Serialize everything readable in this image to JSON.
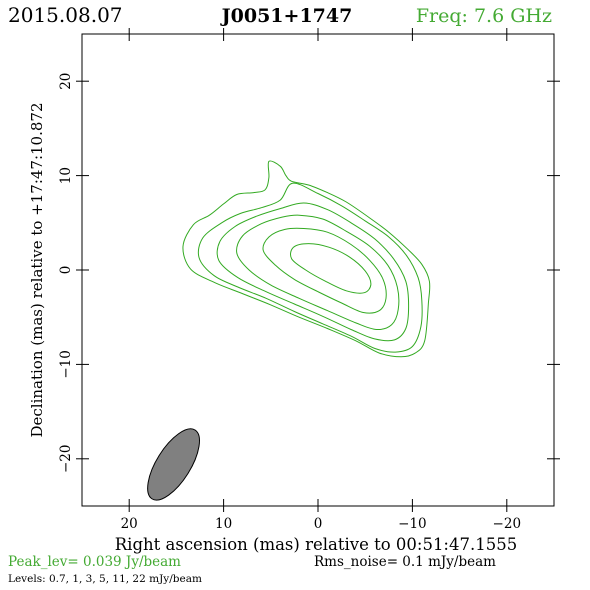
{
  "header": {
    "date": "2015.08.07",
    "source": "J0051+1747",
    "freq": "Freq: 7.6 GHz"
  },
  "footer": {
    "peak": "Peak_lev=  0.039 Jy/beam",
    "rms": "Rms_noise=   0.1 mJy/beam",
    "levels": "Levels: 0.7,    1,    3,    5,   11,   22 mJy/beam"
  },
  "colors": {
    "contour": "#33aa22",
    "header_green": "#44aa33",
    "beam_fill": "#808080",
    "axis": "#000000"
  },
  "chart_data": {
    "type": "contour",
    "xlabel": "Right ascension (mas) relative to 00:51:47.1555",
    "ylabel": "Declination (mas) relative to +17:47:10.872",
    "xlim": [
      25,
      -25
    ],
    "ylim": [
      -25,
      25
    ],
    "x_ticks": [
      20,
      10,
      0,
      -10,
      -20
    ],
    "x_tick_labels": [
      "20",
      "10",
      "0",
      "−10",
      "−20"
    ],
    "y_ticks": [
      20,
      10,
      0,
      -10,
      -20
    ],
    "y_tick_labels": [
      "20",
      "10",
      "0",
      "−10",
      "−20"
    ],
    "contour_levels_mJy": [
      0.7,
      1,
      3,
      5,
      11,
      22
    ],
    "peak_Jy_per_beam": 0.039,
    "rms_mJy_per_beam": 0.1,
    "beam": {
      "center": [
        15.3,
        -20.6
      ],
      "major_mas": 8.6,
      "minor_mas": 3.6,
      "pa_deg": -32
    },
    "contours": [
      [
        [
          5.2,
          11.5
        ],
        [
          4.0,
          11.0
        ],
        [
          3.4,
          10.0
        ],
        [
          2.8,
          9.4
        ],
        [
          1.0,
          9.0
        ],
        [
          -1.0,
          8.2
        ],
        [
          -3.0,
          7.2
        ],
        [
          -5.5,
          5.5
        ],
        [
          -7.5,
          4.0
        ],
        [
          -9.5,
          2.2
        ],
        [
          -11.0,
          0.6
        ],
        [
          -11.8,
          -1.2
        ],
        [
          -11.7,
          -3.5
        ],
        [
          -11.3,
          -7.5
        ],
        [
          -10.3,
          -8.8
        ],
        [
          -8.8,
          -9.2
        ],
        [
          -6.5,
          -8.8
        ],
        [
          -4.0,
          -7.5
        ],
        [
          -1.0,
          -6.2
        ],
        [
          2.0,
          -5.0
        ],
        [
          5.0,
          -3.7
        ],
        [
          8.0,
          -2.5
        ],
        [
          11.0,
          -1.3
        ],
        [
          13.5,
          0.1
        ],
        [
          14.3,
          2.5
        ],
        [
          13.2,
          4.8
        ],
        [
          11.5,
          5.8
        ],
        [
          10.0,
          7.0
        ],
        [
          8.6,
          8.0
        ],
        [
          6.8,
          8.2
        ],
        [
          5.6,
          8.5
        ],
        [
          5.2,
          9.8
        ],
        [
          5.2,
          11.5
        ]
      ],
      [
        [
          2.7,
          9.2
        ],
        [
          0.0,
          8.1
        ],
        [
          -2.5,
          6.8
        ],
        [
          -5.0,
          5.2
        ],
        [
          -7.5,
          3.5
        ],
        [
          -9.4,
          1.5
        ],
        [
          -10.6,
          -0.8
        ],
        [
          -11.0,
          -3.2
        ],
        [
          -10.9,
          -6.0
        ],
        [
          -10.0,
          -8.1
        ],
        [
          -8.2,
          -8.7
        ],
        [
          -6.0,
          -8.3
        ],
        [
          -3.5,
          -7.0
        ],
        [
          -0.5,
          -5.7
        ],
        [
          2.5,
          -4.4
        ],
        [
          5.5,
          -3.0
        ],
        [
          8.5,
          -1.8
        ],
        [
          11.0,
          -0.6
        ],
        [
          12.6,
          1.3
        ],
        [
          12.2,
          3.4
        ],
        [
          10.2,
          5.0
        ],
        [
          8.2,
          6.0
        ],
        [
          6.0,
          6.6
        ],
        [
          4.0,
          7.4
        ],
        [
          2.7,
          9.2
        ]
      ],
      [
        [
          1.5,
          7.1
        ],
        [
          -1.0,
          6.4
        ],
        [
          -3.5,
          5.0
        ],
        [
          -6.0,
          3.3
        ],
        [
          -8.0,
          1.2
        ],
        [
          -9.3,
          -1.2
        ],
        [
          -9.6,
          -3.8
        ],
        [
          -9.3,
          -6.2
        ],
        [
          -8.1,
          -7.4
        ],
        [
          -6.0,
          -7.3
        ],
        [
          -3.5,
          -6.3
        ],
        [
          -0.5,
          -4.9
        ],
        [
          2.5,
          -3.6
        ],
        [
          5.5,
          -2.3
        ],
        [
          8.5,
          -0.8
        ],
        [
          10.5,
          1.0
        ],
        [
          10.4,
          3.0
        ],
        [
          8.8,
          4.6
        ],
        [
          6.5,
          5.7
        ],
        [
          4.0,
          6.5
        ],
        [
          1.5,
          7.1
        ]
      ],
      [
        [
          2.0,
          5.8
        ],
        [
          -0.5,
          5.4
        ],
        [
          -3.0,
          4.1
        ],
        [
          -5.5,
          2.5
        ],
        [
          -7.4,
          0.5
        ],
        [
          -8.4,
          -1.8
        ],
        [
          -8.5,
          -4.2
        ],
        [
          -7.8,
          -5.8
        ],
        [
          -6.2,
          -6.3
        ],
        [
          -4.0,
          -5.6
        ],
        [
          -1.0,
          -4.3
        ],
        [
          2.0,
          -3.0
        ],
        [
          5.0,
          -1.6
        ],
        [
          7.3,
          0.0
        ],
        [
          8.6,
          1.8
        ],
        [
          8.0,
          3.6
        ],
        [
          6.0,
          4.9
        ],
        [
          3.8,
          5.6
        ],
        [
          2.0,
          5.8
        ]
      ],
      [
        [
          1.5,
          4.4
        ],
        [
          -1.0,
          4.0
        ],
        [
          -3.5,
          2.7
        ],
        [
          -5.5,
          1.0
        ],
        [
          -6.9,
          -1.0
        ],
        [
          -7.2,
          -3.0
        ],
        [
          -6.5,
          -4.3
        ],
        [
          -4.8,
          -4.5
        ],
        [
          -2.5,
          -3.5
        ],
        [
          0.0,
          -2.3
        ],
        [
          2.5,
          -1.0
        ],
        [
          4.5,
          0.5
        ],
        [
          5.8,
          2.1
        ],
        [
          5.2,
          3.5
        ],
        [
          3.5,
          4.3
        ],
        [
          1.5,
          4.4
        ]
      ],
      [
        [
          1.0,
          2.8
        ],
        [
          -1.2,
          2.4
        ],
        [
          -3.3,
          1.4
        ],
        [
          -5.0,
          -0.1
        ],
        [
          -5.6,
          -1.5
        ],
        [
          -4.9,
          -2.4
        ],
        [
          -3.0,
          -2.2
        ],
        [
          -0.8,
          -1.2
        ],
        [
          1.3,
          0.0
        ],
        [
          2.8,
          1.2
        ],
        [
          2.6,
          2.4
        ],
        [
          1.0,
          2.8
        ]
      ]
    ]
  }
}
